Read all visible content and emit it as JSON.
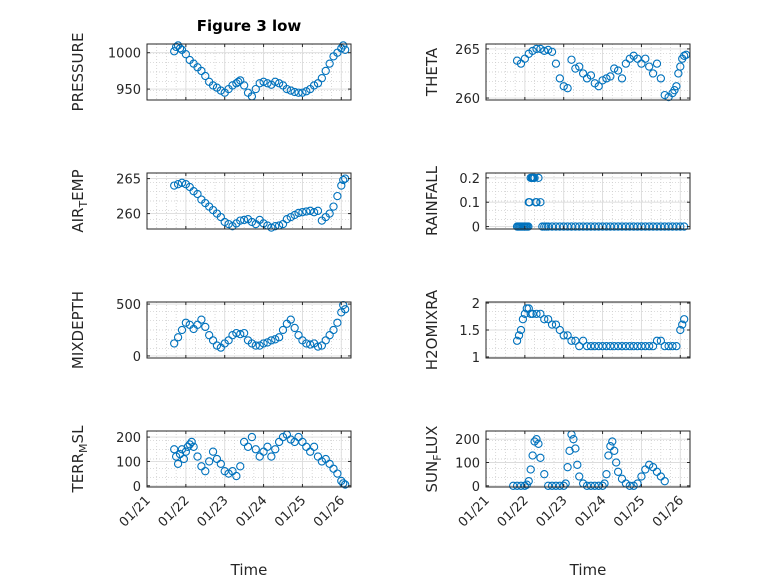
{
  "figure": {
    "title": "Figure 3 low"
  },
  "chart_data": [
    {
      "type": "scatter",
      "title": "Figure 3 low",
      "ylabel": "PRESSURE",
      "ylabel_sub": "",
      "xlabel": "",
      "xlim": [
        0,
        5.25
      ],
      "ylim": [
        935,
        1012
      ],
      "yticks": [
        950,
        1000
      ],
      "color": "#0072BD",
      "x": [
        0.7,
        0.75,
        0.8,
        0.85,
        0.9,
        1.0,
        1.1,
        1.2,
        1.3,
        1.4,
        1.5,
        1.6,
        1.7,
        1.8,
        1.9,
        2.0,
        2.1,
        2.2,
        2.3,
        2.35,
        2.4,
        2.5,
        2.6,
        2.7,
        2.8,
        2.9,
        3.0,
        3.1,
        3.2,
        3.3,
        3.4,
        3.5,
        3.6,
        3.7,
        3.8,
        3.9,
        4.0,
        4.1,
        4.2,
        4.3,
        4.4,
        4.5,
        4.6,
        4.7,
        4.8,
        4.9,
        5.0,
        5.05,
        5.1
      ],
      "y": [
        1002,
        1008,
        1010,
        1006,
        1004,
        998,
        990,
        985,
        980,
        975,
        968,
        960,
        955,
        952,
        948,
        945,
        950,
        955,
        958,
        960,
        962,
        955,
        945,
        940,
        950,
        958,
        960,
        958,
        956,
        960,
        958,
        955,
        950,
        948,
        946,
        945,
        945,
        947,
        950,
        955,
        958,
        965,
        975,
        985,
        995,
        1000,
        1006,
        1010,
        1004
      ]
    },
    {
      "type": "scatter",
      "title": "",
      "ylabel": "THETA",
      "ylabel_sub": "",
      "xlabel": "",
      "xlim": [
        0,
        5.25
      ],
      "ylim": [
        259.8,
        265.5
      ],
      "yticks": [
        260,
        265
      ],
      "color": "#0072BD",
      "x": [
        0.8,
        0.9,
        1.0,
        1.1,
        1.2,
        1.3,
        1.4,
        1.5,
        1.6,
        1.7,
        1.8,
        1.9,
        2.0,
        2.1,
        2.2,
        2.3,
        2.4,
        2.5,
        2.6,
        2.7,
        2.8,
        2.9,
        3.0,
        3.1,
        3.2,
        3.3,
        3.4,
        3.5,
        3.6,
        3.7,
        3.8,
        3.9,
        4.0,
        4.1,
        4.2,
        4.3,
        4.4,
        4.5,
        4.6,
        4.7,
        4.8,
        4.85,
        4.9,
        4.95,
        5.0,
        5.05,
        5.1,
        5.15
      ],
      "y": [
        263.8,
        263.5,
        264.0,
        264.5,
        264.8,
        265.0,
        265.0,
        264.8,
        264.9,
        264.7,
        263.5,
        262.0,
        261.2,
        261.0,
        263.9,
        263.0,
        263.2,
        262.5,
        262.0,
        262.3,
        261.5,
        261.2,
        261.8,
        262.0,
        262.2,
        263.0,
        262.8,
        262.0,
        263.5,
        264.0,
        264.3,
        264.0,
        263.5,
        264.0,
        263.2,
        262.5,
        263.5,
        262.0,
        260.3,
        260.1,
        260.5,
        260.8,
        261.2,
        262.5,
        263.2,
        264.0,
        264.3,
        264.4
      ]
    },
    {
      "type": "scatter",
      "title": "",
      "ylabel": "AIR",
      "ylabel_sub": "T",
      "ylabel_rest": "EMP",
      "xlabel": "",
      "xlim": [
        0,
        5.25
      ],
      "ylim": [
        257.8,
        265.8
      ],
      "yticks": [
        260,
        265
      ],
      "color": "#0072BD",
      "x": [
        0.7,
        0.8,
        0.9,
        1.0,
        1.1,
        1.2,
        1.3,
        1.4,
        1.5,
        1.6,
        1.7,
        1.8,
        1.9,
        2.0,
        2.1,
        2.2,
        2.3,
        2.4,
        2.5,
        2.6,
        2.7,
        2.8,
        2.9,
        3.0,
        3.1,
        3.2,
        3.3,
        3.4,
        3.5,
        3.6,
        3.7,
        3.8,
        3.9,
        4.0,
        4.1,
        4.2,
        4.3,
        4.4,
        4.5,
        4.6,
        4.7,
        4.8,
        4.9,
        5.0,
        5.05,
        5.1
      ],
      "y": [
        264.0,
        264.2,
        264.4,
        264.2,
        263.8,
        263.2,
        262.8,
        262.0,
        261.5,
        261.0,
        260.5,
        260.0,
        259.5,
        258.8,
        258.5,
        258.2,
        258.6,
        259.0,
        259.1,
        259.2,
        258.8,
        258.5,
        259.1,
        258.6,
        258.3,
        258.0,
        258.2,
        258.3,
        258.5,
        259.2,
        259.5,
        259.8,
        260.1,
        260.2,
        260.3,
        260.4,
        260.2,
        260.4,
        259.0,
        259.5,
        260.0,
        261.0,
        262.5,
        264.0,
        264.8,
        265.0
      ]
    },
    {
      "type": "scatter",
      "title": "",
      "ylabel": "RAINFALL",
      "ylabel_sub": "",
      "xlabel": "",
      "xlim": [
        0,
        5.25
      ],
      "ylim": [
        -0.01,
        0.22
      ],
      "yticks": [
        0,
        0.1,
        0.2
      ],
      "color": "#0072BD",
      "x": [
        0.8,
        0.83,
        0.86,
        0.89,
        0.92,
        0.95,
        0.98,
        1.0,
        1.03,
        1.06,
        1.09,
        1.1,
        1.12,
        1.15,
        1.18,
        1.2,
        1.22,
        1.25,
        1.28,
        1.3,
        1.35,
        1.4,
        1.45,
        1.5,
        1.55,
        1.6,
        1.7,
        1.8,
        1.9,
        2.0,
        2.1,
        2.2,
        2.3,
        2.4,
        2.5,
        2.6,
        2.7,
        2.8,
        2.9,
        3.0,
        3.1,
        3.2,
        3.3,
        3.4,
        3.5,
        3.6,
        3.7,
        3.8,
        3.9,
        4.0,
        4.1,
        4.2,
        4.3,
        4.4,
        4.5,
        4.6,
        4.7,
        4.8,
        4.9,
        5.0,
        5.1
      ],
      "y": [
        0,
        0,
        0,
        0,
        0,
        0,
        0,
        0,
        0,
        0,
        0,
        0.1,
        0.1,
        0.2,
        0.2,
        0.2,
        0.2,
        0.2,
        0.1,
        0.1,
        0.2,
        0.1,
        0,
        0,
        0,
        0,
        0,
        0,
        0,
        0,
        0,
        0,
        0,
        0,
        0,
        0,
        0,
        0,
        0,
        0,
        0,
        0,
        0,
        0,
        0,
        0,
        0,
        0,
        0,
        0,
        0,
        0,
        0,
        0,
        0,
        0,
        0,
        0,
        0,
        0,
        0
      ]
    },
    {
      "type": "scatter",
      "title": "",
      "ylabel": "MIXDEPTH",
      "ylabel_sub": "",
      "xlabel": "",
      "xlim": [
        0,
        5.25
      ],
      "ylim": [
        -20,
        520
      ],
      "yticks": [
        0,
        500
      ],
      "color": "#0072BD",
      "x": [
        0.7,
        0.8,
        0.9,
        1.0,
        1.1,
        1.2,
        1.3,
        1.4,
        1.5,
        1.6,
        1.7,
        1.8,
        1.9,
        2.0,
        2.1,
        2.2,
        2.3,
        2.4,
        2.5,
        2.6,
        2.7,
        2.8,
        2.9,
        3.0,
        3.1,
        3.2,
        3.3,
        3.4,
        3.5,
        3.6,
        3.7,
        3.8,
        3.9,
        4.0,
        4.1,
        4.2,
        4.3,
        4.4,
        4.5,
        4.6,
        4.7,
        4.8,
        4.9,
        5.0,
        5.05,
        5.1
      ],
      "y": [
        120,
        180,
        250,
        320,
        300,
        260,
        300,
        350,
        280,
        200,
        150,
        100,
        80,
        120,
        150,
        200,
        220,
        210,
        220,
        150,
        120,
        100,
        100,
        120,
        130,
        150,
        160,
        180,
        250,
        310,
        350,
        270,
        200,
        150,
        120,
        110,
        120,
        90,
        100,
        150,
        200,
        250,
        320,
        420,
        490,
        450
      ]
    },
    {
      "type": "scatter",
      "title": "",
      "ylabel": "H2OMIXRA",
      "ylabel_sub": "",
      "xlabel": "",
      "xlim": [
        0,
        5.25
      ],
      "ylim": [
        0.98,
        2.02
      ],
      "yticks": [
        1,
        1.5,
        2
      ],
      "color": "#0072BD",
      "x": [
        0.8,
        0.85,
        0.9,
        0.95,
        1.0,
        1.05,
        1.1,
        1.15,
        1.2,
        1.3,
        1.4,
        1.5,
        1.6,
        1.7,
        1.8,
        1.9,
        2.0,
        2.1,
        2.2,
        2.3,
        2.4,
        2.5,
        2.6,
        2.7,
        2.8,
        2.9,
        3.0,
        3.1,
        3.2,
        3.3,
        3.4,
        3.5,
        3.6,
        3.7,
        3.8,
        3.9,
        4.0,
        4.1,
        4.2,
        4.3,
        4.4,
        4.5,
        4.6,
        4.7,
        4.8,
        4.9,
        5.0,
        5.05,
        5.1
      ],
      "y": [
        1.3,
        1.4,
        1.5,
        1.7,
        1.8,
        1.9,
        1.9,
        1.8,
        1.8,
        1.8,
        1.8,
        1.7,
        1.7,
        1.6,
        1.6,
        1.5,
        1.4,
        1.4,
        1.3,
        1.3,
        1.2,
        1.3,
        1.2,
        1.2,
        1.2,
        1.2,
        1.2,
        1.2,
        1.2,
        1.2,
        1.2,
        1.2,
        1.2,
        1.2,
        1.2,
        1.2,
        1.2,
        1.2,
        1.2,
        1.2,
        1.3,
        1.3,
        1.2,
        1.2,
        1.2,
        1.2,
        1.5,
        1.6,
        1.7
      ]
    },
    {
      "type": "scatter",
      "title": "",
      "ylabel": "TERR",
      "ylabel_sub": "M",
      "ylabel_rest": "SL",
      "xlabel": "Time",
      "xlim": [
        0,
        5.25
      ],
      "ylim": [
        -5,
        225
      ],
      "yticks": [
        0,
        100,
        200
      ],
      "xticks": [
        0,
        1,
        2,
        3,
        4,
        5
      ],
      "xticklabels": [
        "01/21",
        "01/22",
        "01/23",
        "01/24",
        "01/25",
        "01/26"
      ],
      "color": "#0072BD",
      "x": [
        0.7,
        0.75,
        0.8,
        0.85,
        0.9,
        0.95,
        1.0,
        1.05,
        1.1,
        1.15,
        1.2,
        1.3,
        1.4,
        1.5,
        1.6,
        1.7,
        1.8,
        1.9,
        2.0,
        2.1,
        2.2,
        2.3,
        2.4,
        2.5,
        2.6,
        2.7,
        2.8,
        2.9,
        3.0,
        3.1,
        3.2,
        3.3,
        3.4,
        3.5,
        3.6,
        3.7,
        3.8,
        3.9,
        4.0,
        4.1,
        4.2,
        4.3,
        4.4,
        4.5,
        4.6,
        4.7,
        4.8,
        4.9,
        5.0,
        5.05,
        5.1
      ],
      "y": [
        150,
        120,
        90,
        130,
        150,
        110,
        140,
        160,
        170,
        180,
        160,
        120,
        80,
        60,
        100,
        140,
        110,
        90,
        60,
        50,
        60,
        40,
        80,
        180,
        160,
        200,
        150,
        120,
        140,
        160,
        120,
        150,
        180,
        200,
        210,
        190,
        180,
        200,
        180,
        160,
        140,
        160,
        120,
        100,
        110,
        90,
        70,
        50,
        20,
        10,
        5
      ]
    },
    {
      "type": "scatter",
      "title": "",
      "ylabel": "SUN",
      "ylabel_sub": "F",
      "ylabel_rest": "LUX",
      "xlabel": "Time",
      "xlim": [
        0,
        5.25
      ],
      "ylim": [
        -5,
        235
      ],
      "yticks": [
        0,
        100,
        200
      ],
      "xticks": [
        0,
        1,
        2,
        3,
        4,
        5
      ],
      "xticklabels": [
        "01/21",
        "01/22",
        "01/23",
        "01/24",
        "01/25",
        "01/26"
      ],
      "color": "#0072BD",
      "x": [
        0.7,
        0.8,
        0.9,
        1.0,
        1.05,
        1.1,
        1.15,
        1.2,
        1.25,
        1.3,
        1.35,
        1.4,
        1.5,
        1.6,
        1.7,
        1.8,
        1.9,
        2.0,
        2.05,
        2.1,
        2.15,
        2.2,
        2.25,
        2.3,
        2.35,
        2.4,
        2.5,
        2.6,
        2.7,
        2.8,
        2.9,
        3.0,
        3.05,
        3.1,
        3.15,
        3.2,
        3.25,
        3.3,
        3.35,
        3.4,
        3.5,
        3.6,
        3.7,
        3.8,
        3.9,
        4.0,
        4.1,
        4.2,
        4.3,
        4.4,
        4.5,
        4.6
      ],
      "y": [
        0,
        0,
        0,
        0,
        5,
        20,
        70,
        130,
        190,
        200,
        180,
        120,
        50,
        0,
        0,
        0,
        0,
        0,
        10,
        80,
        150,
        220,
        200,
        160,
        90,
        40,
        10,
        0,
        0,
        0,
        0,
        0,
        10,
        50,
        130,
        170,
        190,
        150,
        100,
        60,
        30,
        10,
        0,
        0,
        10,
        40,
        70,
        90,
        80,
        60,
        40,
        20
      ]
    }
  ]
}
